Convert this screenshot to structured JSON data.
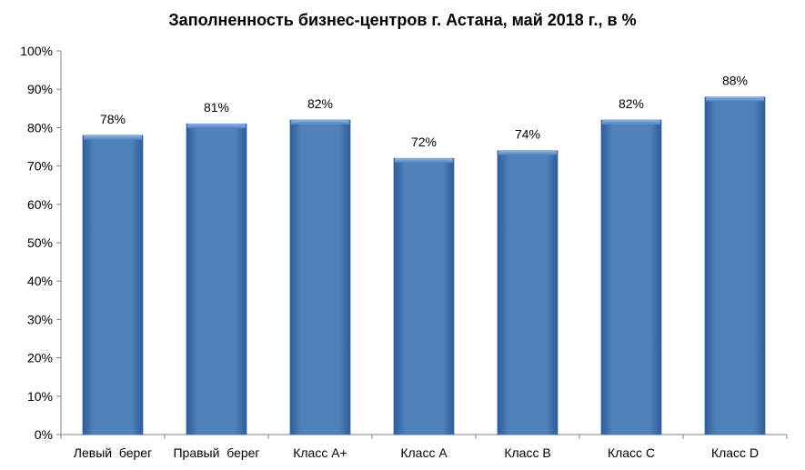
{
  "chart_data": {
    "type": "bar",
    "title": "Заполненность бизнес-центров г. Астана, май 2018 г., в %",
    "categories": [
      "Левый  берег",
      "Правый  берег",
      "Класс А+",
      "Класс А",
      "Класс В",
      "Класс С",
      "Класс D"
    ],
    "values": [
      78,
      81,
      82,
      72,
      74,
      82,
      88
    ],
    "value_labels": [
      "78%",
      "81%",
      "82%",
      "72%",
      "74%",
      "82%",
      "88%"
    ],
    "ylim": [
      0,
      100
    ],
    "y_ticks": [
      0,
      10,
      20,
      30,
      40,
      50,
      60,
      70,
      80,
      90,
      100
    ],
    "y_tick_labels": [
      "0%",
      "10%",
      "20%",
      "30%",
      "40%",
      "50%",
      "60%",
      "70%",
      "80%",
      "90%",
      "100%"
    ],
    "xlabel": "",
    "ylabel": "",
    "grid": false,
    "legend": "none",
    "colors": {
      "bar_fill": "#4F81BD",
      "bar_light": "#8EB3E3",
      "bar_dark": "#2E5C98",
      "axis": "#868686",
      "text": "#000000"
    }
  }
}
